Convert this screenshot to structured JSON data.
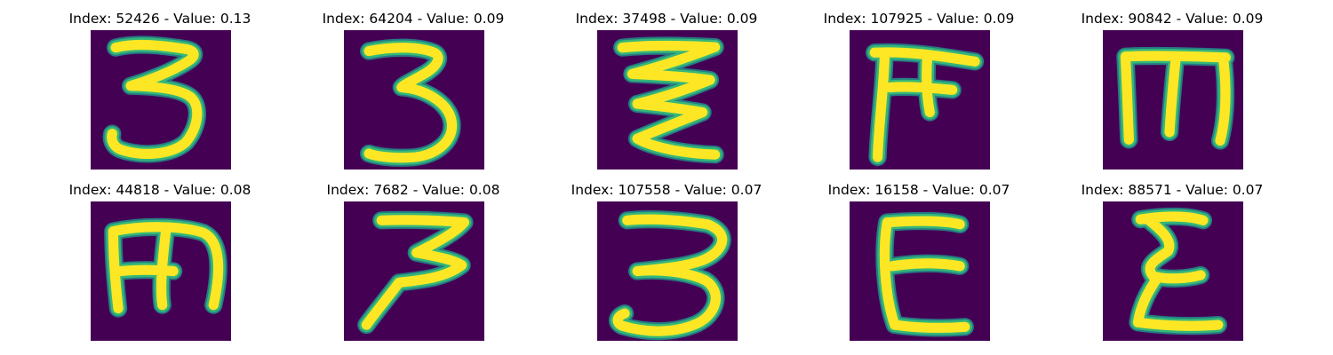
{
  "colors": {
    "background": "#440154",
    "stroke_core": "#fde725",
    "stroke_edge": "#35b779",
    "stroke_halo": "#21918c"
  },
  "panels": [
    {
      "title": "Index: 52426 - Value: 0.13",
      "glyph": "three"
    },
    {
      "title": "Index: 64204 - Value: 0.09",
      "glyph": "three-tall"
    },
    {
      "title": "Index: 37498 - Value: 0.09",
      "glyph": "zigzag"
    },
    {
      "title": "Index: 107925 - Value: 0.09",
      "glyph": "ff"
    },
    {
      "title": "Index: 90842 - Value: 0.09",
      "glyph": "m"
    },
    {
      "title": "Index: 44818 - Value: 0.08",
      "glyph": "m-round"
    },
    {
      "title": "Index: 7682 - Value: 0.08",
      "glyph": "three-z"
    },
    {
      "title": "Index: 107558 - Value: 0.07",
      "glyph": "three-loop"
    },
    {
      "title": "Index: 16158 - Value: 0.07",
      "glyph": "e"
    },
    {
      "title": "Index: 88571 - Value: 0.07",
      "glyph": "e-curly"
    }
  ]
}
